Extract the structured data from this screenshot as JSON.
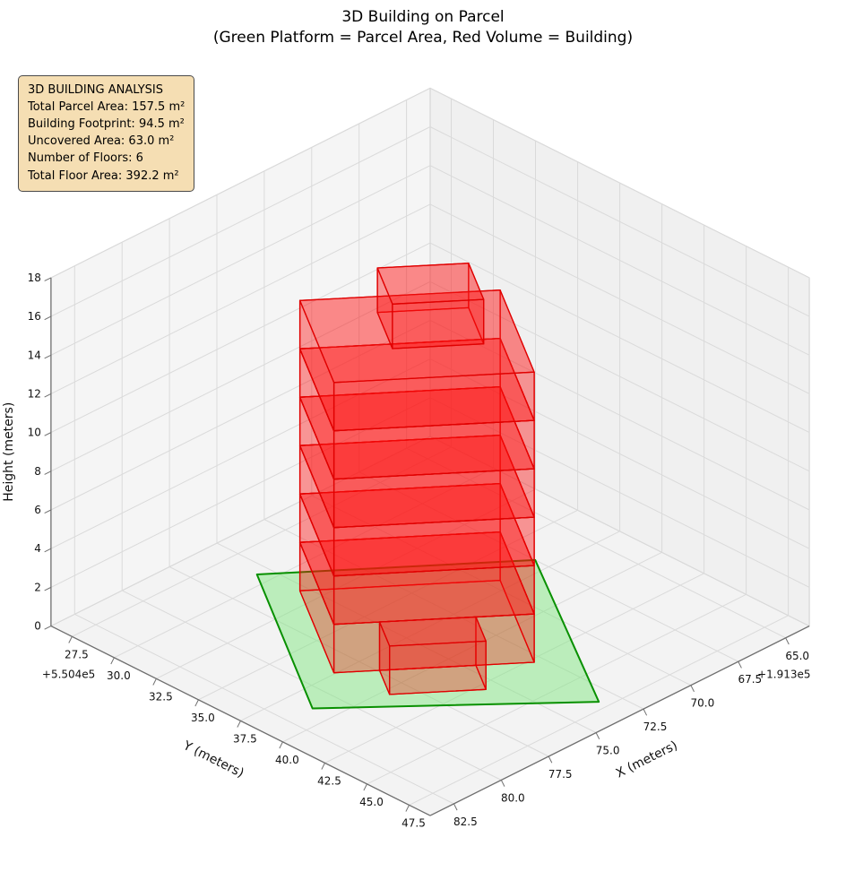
{
  "title": "3D Building on Parcel",
  "subtitle": "(Green Platform = Parcel Area, Red Volume = Building)",
  "info_box": {
    "heading": "3D BUILDING ANALYSIS",
    "lines": [
      "Total Parcel Area: 157.5 m²",
      "Building Footprint: 94.5 m²",
      "Uncovered Area: 63.0 m²",
      "Number of Floors: 6",
      "Total Floor Area: 392.2 m²"
    ],
    "bg_color": "#f5deb3",
    "border_color": "#4a4a4a"
  },
  "chart_data": {
    "type": "3d-building",
    "legend_note": "Green Platform = Parcel Area, Red Volume = Building",
    "view": {
      "azim": 45,
      "elev": 30,
      "box_aspect": [
        4,
        4,
        3
      ],
      "projection": "orthographic"
    },
    "axes": {
      "x": {
        "label": "X (meters)",
        "offset_text": "+1.913e5",
        "range": [
          63.75,
          83.75
        ],
        "ticks": [
          65.0,
          67.5,
          70.0,
          72.5,
          75.0,
          77.5,
          80.0,
          82.5
        ],
        "tick_labels": [
          "65.0",
          "67.5",
          "70.0",
          "72.5",
          "75.0",
          "77.5",
          "80.0",
          "82.5"
        ]
      },
      "y": {
        "label": "Y (meters)",
        "offset_text": "+5.504e5",
        "range": [
          26.25,
          48.75
        ],
        "ticks": [
          27.5,
          30.0,
          32.5,
          35.0,
          37.5,
          40.0,
          42.5,
          45.0,
          47.5
        ],
        "tick_labels": [
          "27.5",
          "30.0",
          "32.5",
          "35.0",
          "37.5",
          "40.0",
          "42.5",
          "45.0",
          "47.5"
        ]
      },
      "z": {
        "label": "Height (meters)",
        "offset_text": "",
        "range": [
          0,
          18
        ],
        "ticks": [
          0,
          2,
          4,
          6,
          8,
          10,
          12,
          14,
          16,
          18
        ],
        "tick_labels": [
          "0",
          "2",
          "4",
          "6",
          "8",
          "10",
          "12",
          "14",
          "16",
          "18"
        ]
      }
    },
    "panes": {
      "floor_fill": "#f3f3f3",
      "wall_y_fill": "#f5f5f5",
      "wall_x_fill": "#f0f0f0",
      "edge": "#d0d0d0",
      "grid": "#dadada",
      "spine": "#6f6f6f"
    },
    "parcel": {
      "area_m2": 157.5,
      "corners_xy": [
        [
          75.6,
          29.3
        ],
        [
          81.2,
          38.9
        ],
        [
          73.3,
          47.0
        ],
        [
          67.5,
          36.7
        ]
      ],
      "fill": "rgba(120,230,120,0.45)",
      "edge": "#089000"
    },
    "building": {
      "footprint_m2": 94.5,
      "num_floors": 6,
      "floor_height": 2.5,
      "total_floor_area_m2": 392.2,
      "frame": {
        "origin": [
          75.6,
          29.3
        ],
        "u": [
          0.504,
          0.864
        ],
        "v": [
          -0.738,
          0.674
        ]
      },
      "blocks": [
        {
          "name": "main-tower",
          "s": [
            1.5,
            8.3
          ],
          "t": [
            1.4,
            9.3
          ],
          "z": [
            0,
            15
          ],
          "split_floors": true
        },
        {
          "name": "front-annex",
          "s": [
            8.3,
            10.3
          ],
          "t": [
            3.2,
            7.0
          ],
          "z": [
            0,
            2.5
          ],
          "split_floors": false
        },
        {
          "name": "penthouse",
          "s": [
            2.8,
            5.8
          ],
          "t": [
            4.2,
            7.8
          ],
          "z": [
            15,
            17.3
          ],
          "split_floors": false
        }
      ],
      "face_fill": "rgba(255,0,0,0.22)",
      "top_fill": "rgba(255,30,30,0.34)",
      "bottom_fill": "rgba(255,0,0,0.12)",
      "edge": "#e00000"
    }
  }
}
